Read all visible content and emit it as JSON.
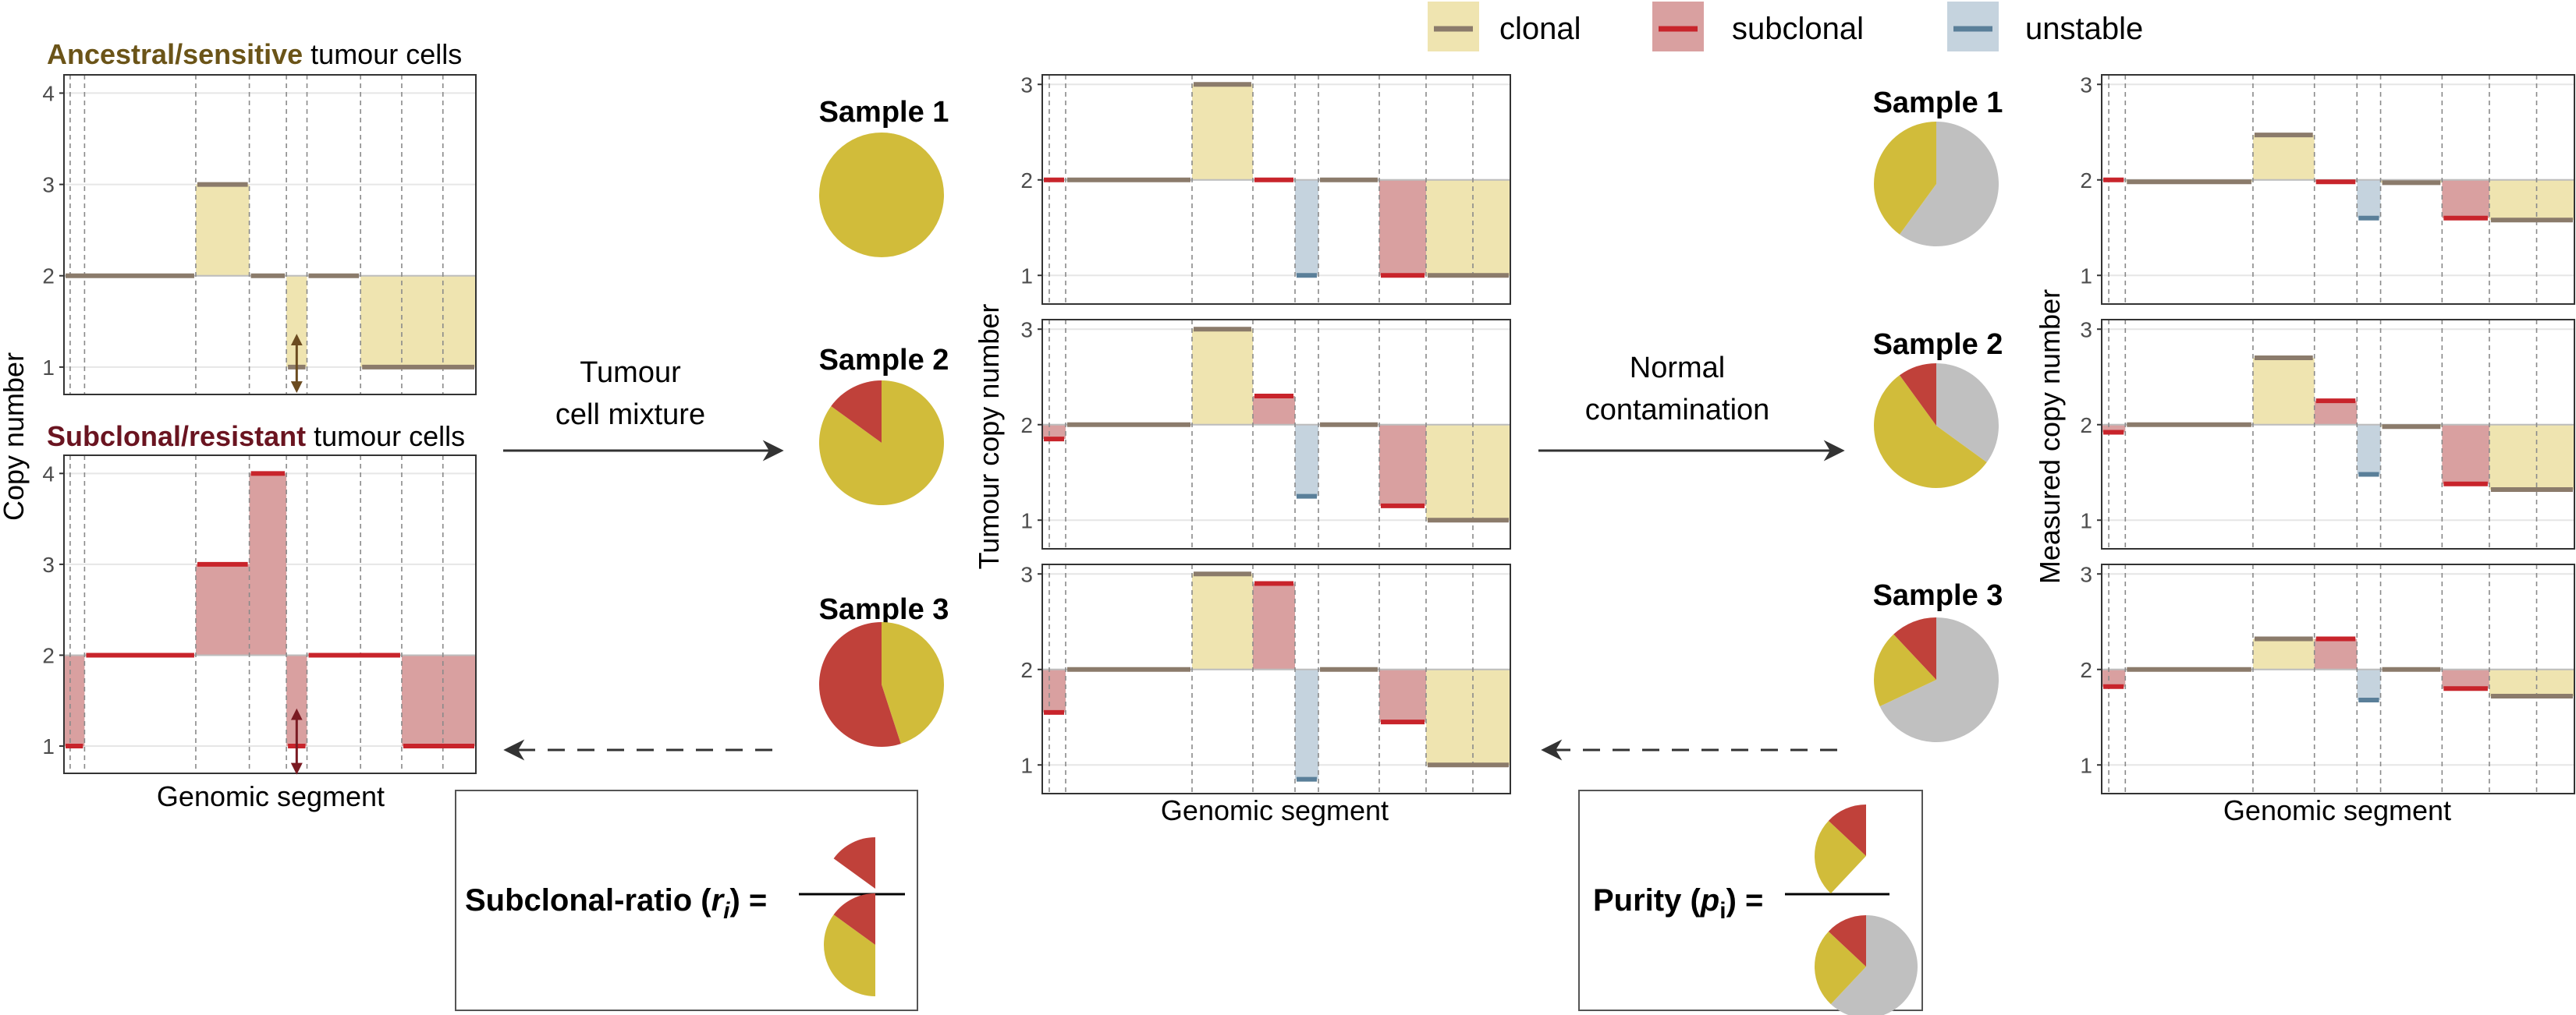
{
  "colors": {
    "clonal_fill": "#efe4b0",
    "clonal_line": "#8b7b6b",
    "subclonal_fill": "#d9a0a0",
    "subclonal_line": "#c8242b",
    "unstable_fill": "#c5d3de",
    "unstable_line": "#5a7f99",
    "ancestral_text": "#6b5418",
    "resistant_text": "#6a1420",
    "pie_yellow": "#d1bc3a",
    "pie_red": "#c0413a",
    "pie_gray": "#c0c0c0",
    "arrow_ancestral": "#6b4b20",
    "arrow_resistant": "#7a1a22"
  },
  "legend": [
    {
      "key": "clonal",
      "label": "clonal"
    },
    {
      "key": "subclonal",
      "label": "subclonal"
    },
    {
      "key": "unstable",
      "label": "unstable"
    }
  ],
  "left_panel": {
    "ancestral_title_bold": "Ancestral/sensitive",
    "ancestral_title_rest": " tumour cells",
    "resistant_title_bold": "Subclonal/resistant",
    "resistant_title_rest": " tumour cells",
    "ylabel": "Copy number",
    "xlabel": "Genomic segment"
  },
  "mixture_label": [
    "Tumour",
    "cell mixture"
  ],
  "contamination_label": [
    "Normal",
    "contamination"
  ],
  "samples_left": [
    {
      "title": "Sample 1",
      "red_fraction": 0.0
    },
    {
      "title": "Sample 2",
      "red_fraction": 0.15
    },
    {
      "title": "Sample 3",
      "red_fraction": 0.55
    }
  ],
  "samples_right": [
    {
      "title": "Sample 1",
      "yellow_fraction": 0.4,
      "red_fraction": 0.0
    },
    {
      "title": "Sample 2",
      "yellow_fraction": 0.55,
      "red_fraction": 0.1
    },
    {
      "title": "Sample 3",
      "yellow_fraction": 0.2,
      "red_fraction": 0.12
    }
  ],
  "middle_panel": {
    "ylabel": "Tumour copy number",
    "xlabel": "Genomic segment"
  },
  "right_panel": {
    "ylabel": "Measured copy number",
    "xlabel": "Genomic segment"
  },
  "formula_left": {
    "label": "Subclonal-ratio (",
    "var": "r",
    "sub": "i",
    "close": ") ="
  },
  "formula_right": {
    "label": "Purity (",
    "var": "p",
    "sub": "i",
    "close": ") ="
  },
  "chart_data": {
    "type": "step",
    "ancestral": {
      "ylim": [
        0.7,
        4.2
      ],
      "yticks": [
        1,
        2,
        3,
        4
      ],
      "segments": [
        {
          "x0": 0,
          "x1": 0.32,
          "y": 2,
          "base": 2,
          "kind": "clonal"
        },
        {
          "x0": 0.32,
          "x1": 0.45,
          "y": 3,
          "base": 2,
          "kind": "clonal"
        },
        {
          "x0": 0.45,
          "x1": 0.54,
          "y": 2,
          "base": 2,
          "kind": "clonal"
        },
        {
          "x0": 0.54,
          "x1": 0.59,
          "y": 1,
          "base": 2,
          "kind": "clonal"
        },
        {
          "x0": 0.59,
          "x1": 0.72,
          "y": 2,
          "base": 2,
          "kind": "clonal"
        },
        {
          "x0": 0.72,
          "x1": 1.0,
          "y": 1,
          "base": 2,
          "kind": "clonal"
        }
      ]
    },
    "resistant": {
      "ylim": [
        0.7,
        4.2
      ],
      "yticks": [
        1,
        2,
        3,
        4
      ],
      "segments": [
        {
          "x0": 0,
          "x1": 0.05,
          "y": 1,
          "base": 2,
          "kind": "subclonal"
        },
        {
          "x0": 0.05,
          "x1": 0.32,
          "y": 2,
          "base": 2,
          "kind": "subclonal"
        },
        {
          "x0": 0.32,
          "x1": 0.45,
          "y": 3,
          "base": 2,
          "kind": "subclonal"
        },
        {
          "x0": 0.45,
          "x1": 0.54,
          "y": 4,
          "base": 2,
          "kind": "subclonal"
        },
        {
          "x0": 0.54,
          "x1": 0.59,
          "y": 1,
          "base": 2,
          "kind": "subclonal"
        },
        {
          "x0": 0.59,
          "x1": 0.82,
          "y": 2,
          "base": 2,
          "kind": "subclonal"
        },
        {
          "x0": 0.82,
          "x1": 1.0,
          "y": 1,
          "base": 2,
          "kind": "subclonal"
        }
      ]
    },
    "tumour": [
      {
        "ylim": [
          0.7,
          3.1
        ],
        "yticks": [
          1,
          2,
          3
        ],
        "segments": [
          {
            "x0": 0,
            "x1": 0.05,
            "y": 2,
            "base": 2,
            "kind": "subclonal"
          },
          {
            "x0": 0.05,
            "x1": 0.32,
            "y": 2,
            "base": 2,
            "kind": "clonal"
          },
          {
            "x0": 0.32,
            "x1": 0.45,
            "y": 3,
            "base": 2,
            "kind": "clonal"
          },
          {
            "x0": 0.45,
            "x1": 0.54,
            "y": 2,
            "base": 2,
            "kind": "subclonal"
          },
          {
            "x0": 0.54,
            "x1": 0.59,
            "y": 1,
            "base": 2,
            "kind": "unstable"
          },
          {
            "x0": 0.59,
            "x1": 0.72,
            "y": 2,
            "base": 2,
            "kind": "clonal"
          },
          {
            "x0": 0.72,
            "x1": 0.82,
            "y": 1,
            "base": 2,
            "kind": "subclonal"
          },
          {
            "x0": 0.82,
            "x1": 1.0,
            "y": 1,
            "base": 2,
            "kind": "clonal"
          }
        ]
      },
      {
        "ylim": [
          0.7,
          3.1
        ],
        "yticks": [
          1,
          2,
          3
        ],
        "segments": [
          {
            "x0": 0,
            "x1": 0.05,
            "y": 1.85,
            "base": 2,
            "kind": "subclonal"
          },
          {
            "x0": 0.05,
            "x1": 0.32,
            "y": 2,
            "base": 2,
            "kind": "clonal"
          },
          {
            "x0": 0.32,
            "x1": 0.45,
            "y": 3,
            "base": 2,
            "kind": "clonal"
          },
          {
            "x0": 0.45,
            "x1": 0.54,
            "y": 2.3,
            "base": 2,
            "kind": "subclonal"
          },
          {
            "x0": 0.54,
            "x1": 0.59,
            "y": 1.25,
            "base": 2,
            "kind": "unstable"
          },
          {
            "x0": 0.59,
            "x1": 0.72,
            "y": 2,
            "base": 2,
            "kind": "clonal"
          },
          {
            "x0": 0.72,
            "x1": 0.82,
            "y": 1.15,
            "base": 2,
            "kind": "subclonal"
          },
          {
            "x0": 0.82,
            "x1": 1.0,
            "y": 1,
            "base": 2,
            "kind": "clonal"
          }
        ]
      },
      {
        "ylim": [
          0.7,
          3.1
        ],
        "yticks": [
          1,
          2,
          3
        ],
        "segments": [
          {
            "x0": 0,
            "x1": 0.05,
            "y": 1.55,
            "base": 2,
            "kind": "subclonal"
          },
          {
            "x0": 0.05,
            "x1": 0.32,
            "y": 2,
            "base": 2,
            "kind": "clonal"
          },
          {
            "x0": 0.32,
            "x1": 0.45,
            "y": 3,
            "base": 2,
            "kind": "clonal"
          },
          {
            "x0": 0.45,
            "x1": 0.54,
            "y": 2.9,
            "base": 2,
            "kind": "subclonal"
          },
          {
            "x0": 0.54,
            "x1": 0.59,
            "y": 0.85,
            "base": 2,
            "kind": "unstable"
          },
          {
            "x0": 0.59,
            "x1": 0.72,
            "y": 2,
            "base": 2,
            "kind": "clonal"
          },
          {
            "x0": 0.72,
            "x1": 0.82,
            "y": 1.45,
            "base": 2,
            "kind": "subclonal"
          },
          {
            "x0": 0.82,
            "x1": 1.0,
            "y": 1,
            "base": 2,
            "kind": "clonal"
          }
        ]
      }
    ],
    "measured": [
      {
        "ylim": [
          0.7,
          3.1
        ],
        "yticks": [
          1,
          2,
          3
        ],
        "segments": [
          {
            "x0": 0,
            "x1": 0.05,
            "y": 2.0,
            "base": 2,
            "kind": "subclonal"
          },
          {
            "x0": 0.05,
            "x1": 0.32,
            "y": 1.98,
            "base": 2,
            "kind": "clonal"
          },
          {
            "x0": 0.32,
            "x1": 0.45,
            "y": 2.47,
            "base": 2,
            "kind": "clonal"
          },
          {
            "x0": 0.45,
            "x1": 0.54,
            "y": 1.98,
            "base": 2,
            "kind": "subclonal"
          },
          {
            "x0": 0.54,
            "x1": 0.59,
            "y": 1.6,
            "base": 2,
            "kind": "unstable"
          },
          {
            "x0": 0.59,
            "x1": 0.72,
            "y": 1.97,
            "base": 2,
            "kind": "clonal"
          },
          {
            "x0": 0.72,
            "x1": 0.82,
            "y": 1.6,
            "base": 2,
            "kind": "subclonal"
          },
          {
            "x0": 0.82,
            "x1": 1.0,
            "y": 1.58,
            "base": 2,
            "kind": "clonal"
          }
        ]
      },
      {
        "ylim": [
          0.7,
          3.1
        ],
        "yticks": [
          1,
          2,
          3
        ],
        "segments": [
          {
            "x0": 0,
            "x1": 0.05,
            "y": 1.92,
            "base": 2,
            "kind": "subclonal"
          },
          {
            "x0": 0.05,
            "x1": 0.32,
            "y": 2,
            "base": 2,
            "kind": "clonal"
          },
          {
            "x0": 0.32,
            "x1": 0.45,
            "y": 2.7,
            "base": 2,
            "kind": "clonal"
          },
          {
            "x0": 0.45,
            "x1": 0.54,
            "y": 2.25,
            "base": 2,
            "kind": "subclonal"
          },
          {
            "x0": 0.54,
            "x1": 0.59,
            "y": 1.48,
            "base": 2,
            "kind": "unstable"
          },
          {
            "x0": 0.59,
            "x1": 0.72,
            "y": 1.98,
            "base": 2,
            "kind": "clonal"
          },
          {
            "x0": 0.72,
            "x1": 0.82,
            "y": 1.38,
            "base": 2,
            "kind": "subclonal"
          },
          {
            "x0": 0.82,
            "x1": 1.0,
            "y": 1.32,
            "base": 2,
            "kind": "clonal"
          }
        ]
      },
      {
        "ylim": [
          0.7,
          3.1
        ],
        "yticks": [
          1,
          2,
          3
        ],
        "segments": [
          {
            "x0": 0,
            "x1": 0.05,
            "y": 1.82,
            "base": 2,
            "kind": "subclonal"
          },
          {
            "x0": 0.05,
            "x1": 0.32,
            "y": 2,
            "base": 2,
            "kind": "clonal"
          },
          {
            "x0": 0.32,
            "x1": 0.45,
            "y": 2.32,
            "base": 2,
            "kind": "clonal"
          },
          {
            "x0": 0.45,
            "x1": 0.54,
            "y": 2.32,
            "base": 2,
            "kind": "subclonal"
          },
          {
            "x0": 0.54,
            "x1": 0.59,
            "y": 1.68,
            "base": 2,
            "kind": "unstable"
          },
          {
            "x0": 0.59,
            "x1": 0.72,
            "y": 2.0,
            "base": 2,
            "kind": "clonal"
          },
          {
            "x0": 0.72,
            "x1": 0.82,
            "y": 1.8,
            "base": 2,
            "kind": "subclonal"
          },
          {
            "x0": 0.82,
            "x1": 1.0,
            "y": 1.72,
            "base": 2,
            "kind": "clonal"
          }
        ]
      }
    ],
    "breakpoints": [
      0.05,
      0.32,
      0.45,
      0.54,
      0.59,
      0.72,
      0.82
    ]
  }
}
